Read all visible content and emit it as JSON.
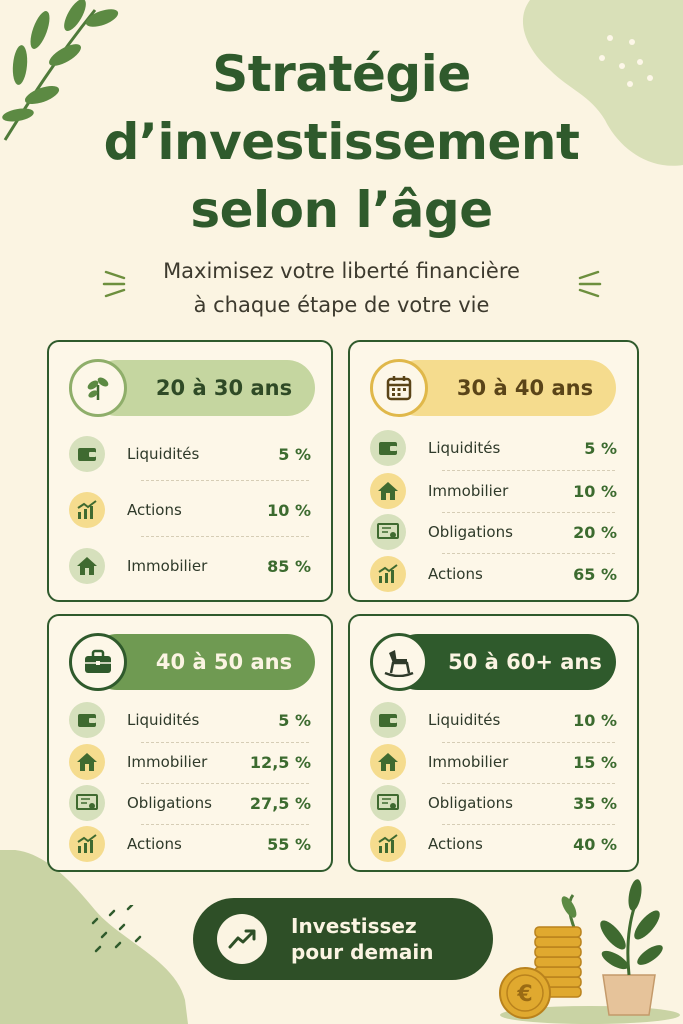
{
  "title": {
    "line1": "Stratégie",
    "line2": "d’investissement",
    "line3": "selon l’âge"
  },
  "subtitle": {
    "line1": "Maximisez votre liberté financière",
    "line2": "à chaque étape de votre vie"
  },
  "cards": [
    {
      "label": "20 à 30 ans",
      "icon": "sprout-icon",
      "rows": [
        {
          "icon": "wallet-icon",
          "label": "Liquidités",
          "value": "5 %"
        },
        {
          "icon": "chart-up-icon",
          "label": "Actions",
          "value": "10 %"
        },
        {
          "icon": "house-icon",
          "label": "Immobilier",
          "value": "85 %"
        }
      ]
    },
    {
      "label": "30 à 40 ans",
      "icon": "calendar-icon",
      "rows": [
        {
          "icon": "wallet-icon",
          "label": "Liquidités",
          "value": "5 %"
        },
        {
          "icon": "house-icon",
          "label": "Immobilier",
          "value": "10 %"
        },
        {
          "icon": "certificate-icon",
          "label": "Obligations",
          "value": "20 %"
        },
        {
          "icon": "chart-up-icon",
          "label": "Actions",
          "value": "65 %"
        }
      ]
    },
    {
      "label": "40 à 50 ans",
      "icon": "briefcase-icon",
      "rows": [
        {
          "icon": "wallet-icon",
          "label": "Liquidités",
          "value": "5 %"
        },
        {
          "icon": "house-icon",
          "label": "Immobilier",
          "value": "12,5 %"
        },
        {
          "icon": "certificate-icon",
          "label": "Obligations",
          "value": "27,5 %"
        },
        {
          "icon": "chart-up-icon",
          "label": "Actions",
          "value": "55 %"
        }
      ]
    },
    {
      "label": "50 à 60+ ans",
      "icon": "rocking-horse-icon",
      "rows": [
        {
          "icon": "wallet-icon",
          "label": "Liquidités",
          "value": "10 %"
        },
        {
          "icon": "house-icon",
          "label": "Immobilier",
          "value": "15 %"
        },
        {
          "icon": "certificate-icon",
          "label": "Obligations",
          "value": "35 %"
        },
        {
          "icon": "chart-up-icon",
          "label": "Actions",
          "value": "40 %"
        }
      ]
    }
  ],
  "cta": {
    "line1": "Investissez",
    "line2": "pour demain",
    "icon": "trend-up-icon"
  },
  "colors": {
    "darkGreen": "#2f5a2c",
    "lightGreen": "#c5d6a0",
    "yellow": "#f5dc8e",
    "cream": "#fbf4e2"
  }
}
